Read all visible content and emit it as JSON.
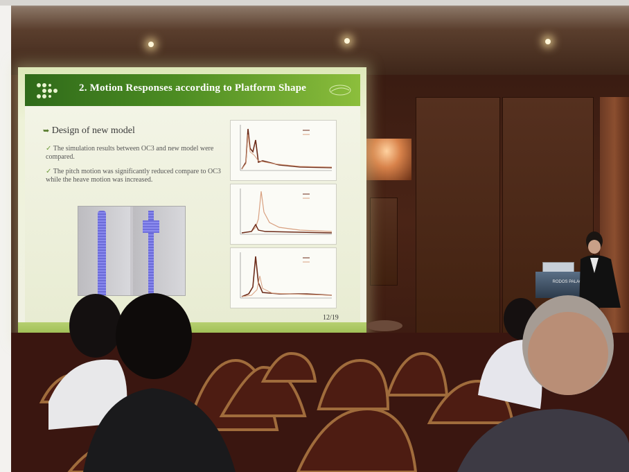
{
  "slide": {
    "title": "2. Motion Responses according to Platform Shape",
    "heading": "Design of new model",
    "bullets": [
      "The simulation results between OC3 and new model were compared.",
      "The pitch motion was significantly reduced compare to OC3 while the heave motion was increased."
    ],
    "page_number": "12/19"
  },
  "podium": {
    "text": "RODOS PALACE"
  },
  "colors": {
    "slide_header": "#4c8c22",
    "slide_background": "#f0f1e4",
    "curve_dark": "#6b2a18",
    "curve_light": "#d8a080"
  }
}
